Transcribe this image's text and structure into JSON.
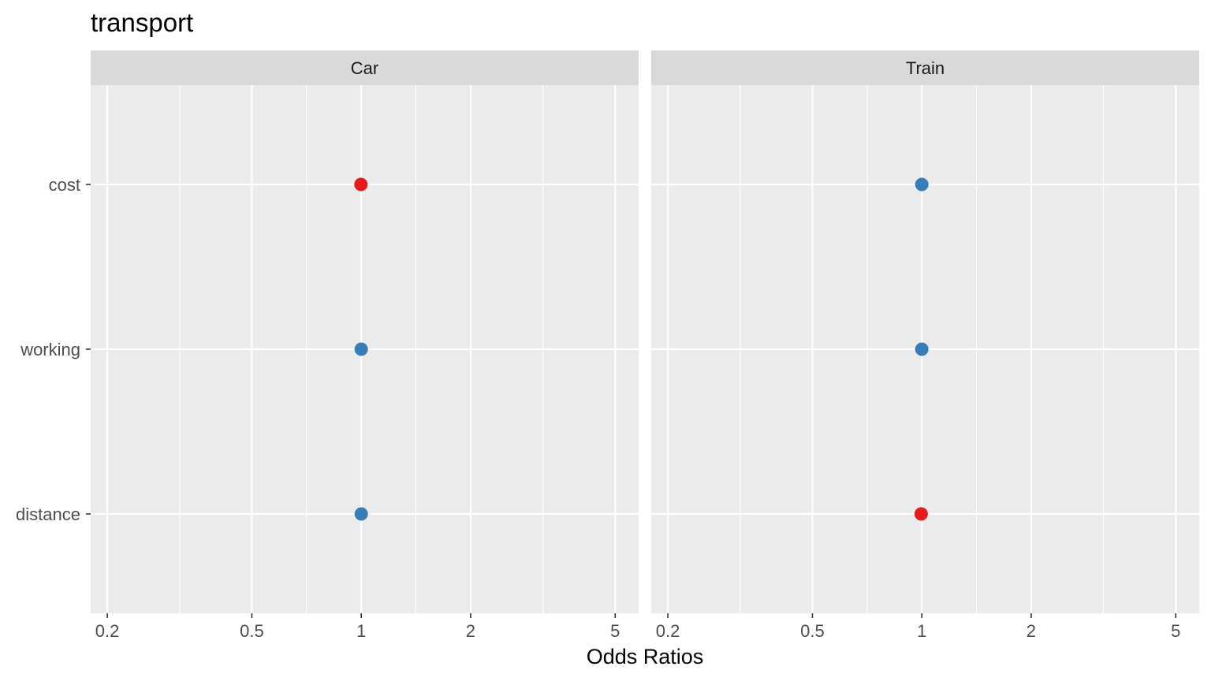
{
  "chart_data": {
    "type": "scatter",
    "title": "transport",
    "xlabel": "Odds Ratios",
    "ylabel": "",
    "x_scale": "log",
    "xlim": [
      0.18,
      5.8
    ],
    "x_ticks": [
      0.2,
      0.5,
      1,
      2,
      5
    ],
    "x_tick_labels": [
      "0.2",
      "0.5",
      "1",
      "2",
      "5"
    ],
    "x_minor_breaks": [
      0.3162,
      0.7071,
      1.4142,
      3.1623
    ],
    "categories": [
      "cost",
      "working",
      "distance"
    ],
    "grid": true,
    "colors": {
      "positive": "#E41A1C",
      "negative": "#377EB8",
      "panel_background": "#EBEBEB",
      "strip_background": "#D9D9D9",
      "gridline": "#FFFFFF"
    },
    "facets": [
      {
        "name": "Car",
        "points": [
          {
            "term": "cost",
            "value": 0.998,
            "color": "#E41A1C"
          },
          {
            "term": "working",
            "value": 1.0,
            "color": "#377EB8"
          },
          {
            "term": "distance",
            "value": 1.0,
            "color": "#377EB8"
          }
        ]
      },
      {
        "name": "Train",
        "points": [
          {
            "term": "cost",
            "value": 1.0,
            "color": "#377EB8"
          },
          {
            "term": "working",
            "value": 1.0,
            "color": "#377EB8"
          },
          {
            "term": "distance",
            "value": 0.996,
            "color": "#E41A1C"
          }
        ]
      }
    ]
  }
}
